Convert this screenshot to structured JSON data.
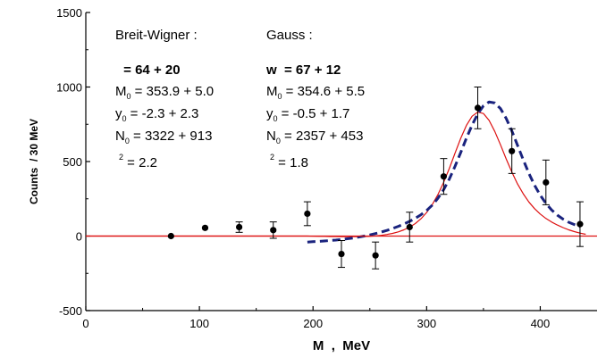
{
  "chart_data": {
    "type": "scatter",
    "xlabel": "M  ,  MeV",
    "ylabel": "Counts  / 30 MeV",
    "xlim": [
      0,
      450
    ],
    "ylim": [
      -500,
      1500
    ],
    "xticks": [
      0,
      100,
      200,
      300,
      400
    ],
    "yticks": [
      -500,
      0,
      500,
      1000,
      1500
    ],
    "grid": false,
    "points": [
      {
        "x": 75,
        "y": 0,
        "err": 0
      },
      {
        "x": 105,
        "y": 55,
        "err": 0
      },
      {
        "x": 135,
        "y": 60,
        "err": 35
      },
      {
        "x": 165,
        "y": 40,
        "err": 55
      },
      {
        "x": 195,
        "y": 150,
        "err": 80
      },
      {
        "x": 225,
        "y": -120,
        "err": 90
      },
      {
        "x": 255,
        "y": -130,
        "err": 90
      },
      {
        "x": 285,
        "y": 60,
        "err": 100
      },
      {
        "x": 315,
        "y": 400,
        "err": 120
      },
      {
        "x": 345,
        "y": 860,
        "err": 140
      },
      {
        "x": 375,
        "y": 570,
        "err": 150
      },
      {
        "x": 405,
        "y": 360,
        "err": 150
      },
      {
        "x": 435,
        "y": 80,
        "err": 150
      }
    ],
    "series": [
      {
        "color": "#dd1111",
        "style": "solid",
        "x": [
          0,
          195,
          200,
          205,
          210,
          215,
          220,
          225,
          230,
          235,
          240,
          245,
          250,
          255,
          260,
          265,
          270,
          275,
          280,
          285,
          290,
          295,
          300,
          305,
          310,
          315,
          320,
          325,
          330,
          335,
          340,
          345,
          350,
          355,
          360,
          365,
          370,
          375,
          380,
          385,
          390,
          395,
          400,
          405,
          410,
          415,
          420,
          425,
          430,
          435,
          440
        ],
        "y": [
          0,
          0,
          -1,
          -2,
          -2,
          -3,
          -3,
          -4,
          -4,
          -4,
          -4,
          -3,
          -2,
          1,
          5,
          11,
          18,
          28,
          42,
          60,
          84,
          116,
          158,
          212,
          279,
          361,
          455,
          556,
          656,
          742,
          804,
          832,
          822,
          776,
          702,
          612,
          518,
          429,
          350,
          284,
          229,
          184,
          148,
          118,
          94,
          74,
          57,
          42,
          30,
          20,
          12
        ]
      },
      {
        "color": "#1a237e",
        "style": "dashed",
        "x": [
          195,
          200,
          205,
          210,
          215,
          220,
          225,
          230,
          235,
          240,
          245,
          250,
          255,
          260,
          265,
          270,
          275,
          280,
          285,
          290,
          295,
          300,
          305,
          310,
          315,
          320,
          325,
          330,
          335,
          340,
          345,
          350,
          355,
          360,
          365,
          370,
          375,
          380,
          385,
          390,
          395,
          400,
          405,
          410,
          415,
          420,
          425,
          430,
          435
        ],
        "y": [
          -40,
          -38,
          -36,
          -33,
          -30,
          -27,
          -23,
          -18,
          -13,
          -7,
          0,
          8,
          17,
          27,
          38,
          51,
          65,
          81,
          99,
          119,
          143,
          172,
          208,
          254,
          312,
          384,
          468,
          561,
          656,
          745,
          820,
          874,
          900,
          893,
          855,
          790,
          705,
          609,
          512,
          421,
          341,
          274,
          219,
          175,
          141,
          114,
          93,
          77,
          64
        ]
      },
      {
        "color": "#dd1111",
        "style": "solid",
        "x": [
          0,
          450
        ],
        "y": [
          0,
          0
        ]
      }
    ]
  },
  "annotations": {
    "left": {
      "title": "Breit-Wigner :",
      "width_line": " = 64 + 20",
      "m_main": "M",
      "m_sub": "0",
      "m_val": " = 353.9 + 5.0",
      "y_main": "y",
      "y_sub": "0",
      "y_val": " = -2.3 + 2.3",
      "n_main": "N",
      "n_sub": "0",
      "n_val": " = 3322 + 913",
      "chi_sup": "2",
      "chi_val": " = 2.2"
    },
    "right": {
      "title": "Gauss :",
      "width_line": "w  = 67 + 12",
      "m_main": "M",
      "m_sub": "0",
      "m_val": " = 354.6 + 5.5",
      "y_main": "y",
      "y_sub": "0",
      "y_val": " = -0.5 + 1.7",
      "n_main": "N",
      "n_sub": "0",
      "n_val": " = 2357 + 453",
      "chi_sup": "2",
      "chi_val": " = 1.8"
    }
  }
}
